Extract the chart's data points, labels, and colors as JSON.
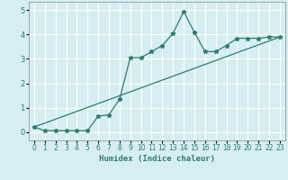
{
  "xlabel": "Humidex (Indice chaleur)",
  "bg_color": "#d6eef2",
  "grid_color": "#ffffff",
  "line_color": "#2e7d6e",
  "xlim": [
    -0.5,
    23.5
  ],
  "ylim": [
    -0.35,
    5.35
  ],
  "xticks": [
    0,
    1,
    2,
    3,
    4,
    5,
    6,
    7,
    8,
    9,
    10,
    11,
    12,
    13,
    14,
    15,
    16,
    17,
    18,
    19,
    20,
    21,
    22,
    23
  ],
  "yticks": [
    0,
    1,
    2,
    3,
    4,
    5
  ],
  "series1_x": [
    0,
    1,
    2,
    3,
    4,
    5,
    6,
    7,
    8,
    9,
    10,
    11,
    12,
    13,
    14,
    15,
    16,
    17,
    18,
    19,
    20,
    21,
    22,
    23
  ],
  "series1_y": [
    0.2,
    0.05,
    0.05,
    0.05,
    0.05,
    0.05,
    0.65,
    0.7,
    1.35,
    3.05,
    3.05,
    3.3,
    3.55,
    4.05,
    4.95,
    4.1,
    3.3,
    3.3,
    3.55,
    3.85,
    3.85,
    3.85,
    3.9,
    3.9
  ],
  "series2_x": [
    0,
    23
  ],
  "series2_y": [
    0.2,
    3.9
  ],
  "xlabel_fontsize": 6.5,
  "tick_fontsize": 5.5
}
